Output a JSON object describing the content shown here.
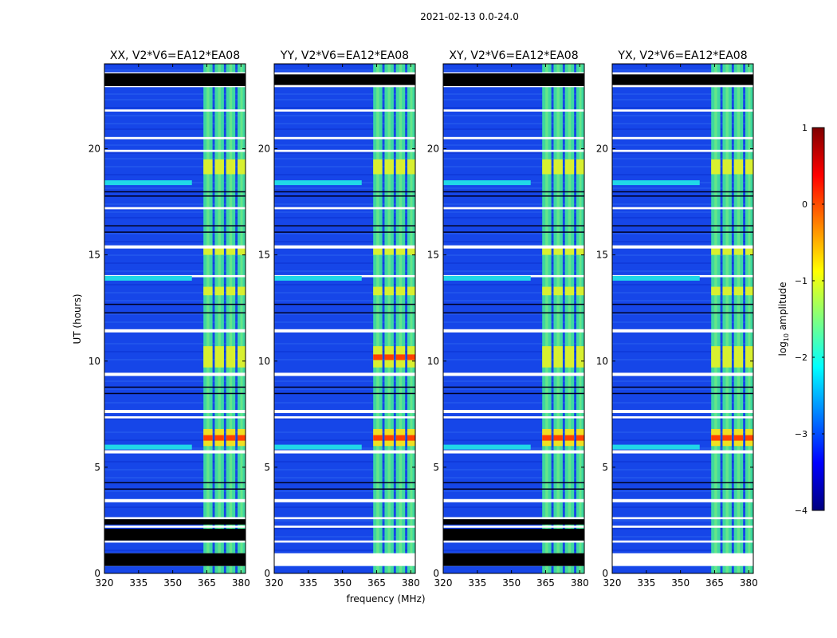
{
  "chart_data": {
    "type": "heatmap",
    "title": "2021-02-13 0.0-24.0",
    "xlabel": "frequency (MHz)",
    "ylabel": "UT (hours)",
    "xlim": [
      320,
      382
    ],
    "ylim": [
      0,
      24
    ],
    "xticks": [
      320,
      335,
      350,
      365,
      380
    ],
    "xtick_labels": [
      "320",
      "335",
      "350",
      "365",
      "380"
    ],
    "yticks": [
      0,
      5,
      10,
      15,
      20
    ],
    "ytick_labels": [
      "0",
      "5",
      "10",
      "15",
      "20"
    ],
    "panels": [
      {
        "title": "XX, V2*V6=EA12*EA08"
      },
      {
        "title": "YY, V2*V6=EA12*EA08"
      },
      {
        "title": "XY, V2*V6=EA12*EA08"
      },
      {
        "title": "YX, V2*V6=EA12*EA08"
      }
    ],
    "colorbar": {
      "label": "log$_{10}$ amplitude",
      "label_main": "log",
      "label_sub": "10",
      "label_rest": " amplitude",
      "colormap": "jet",
      "range": [
        -4,
        1
      ],
      "ticks": [
        -4,
        -3,
        -2,
        -1,
        0,
        1
      ],
      "tick_labels": [
        "−4",
        "−3",
        "−2",
        "−1",
        "0",
        "1"
      ]
    },
    "rfi_band_mhz": [
      [
        363.5,
        367.5
      ],
      [
        368.5,
        372.5
      ],
      [
        373.5,
        377.5
      ],
      [
        378.5,
        382.0
      ]
    ],
    "flagged_intervals_ut": [
      [
        0.35,
        0.95
      ],
      [
        1.45,
        1.55
      ],
      [
        2.15,
        2.25
      ],
      [
        2.55,
        2.65
      ],
      [
        3.35,
        3.5
      ],
      [
        5.65,
        5.8
      ],
      [
        7.3,
        7.4
      ],
      [
        7.55,
        7.7
      ],
      [
        9.3,
        9.45
      ],
      [
        11.35,
        11.5
      ],
      [
        13.95,
        14.05
      ],
      [
        15.3,
        15.45
      ],
      [
        17.15,
        17.25
      ],
      [
        19.85,
        19.95
      ],
      [
        20.45,
        20.55
      ],
      [
        21.75,
        21.85
      ],
      [
        22.9,
        23.6
      ]
    ],
    "bright_intervals_ut": [
      [
        6.0,
        6.8
      ],
      [
        9.7,
        10.7
      ],
      [
        15.0,
        15.4
      ],
      [
        18.8,
        19.5
      ],
      [
        13.1,
        13.5
      ]
    ]
  }
}
